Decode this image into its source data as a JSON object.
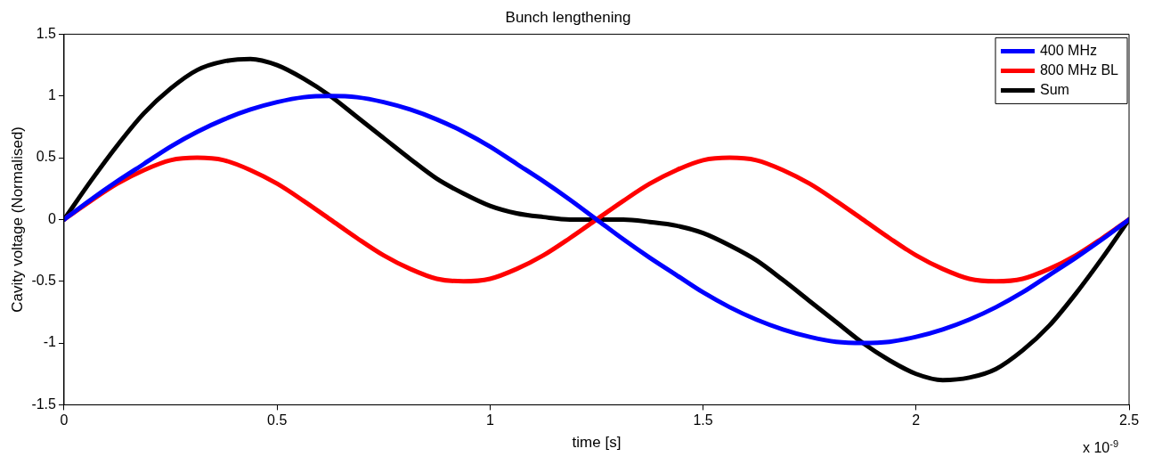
{
  "chart_data": {
    "type": "line",
    "title": "Bunch lengthening",
    "xlabel": "time [s]",
    "ylabel": "Cavity voltage (Normalised)",
    "annotations": [
      "x 10$^{-9}$"
    ],
    "x": [
      0,
      0.0625,
      0.125,
      0.1875,
      0.25,
      0.3125,
      0.375,
      0.4375,
      0.5,
      0.5625,
      0.625,
      0.6875,
      0.75,
      0.8125,
      0.875,
      0.9375,
      1,
      1.0625,
      1.125,
      1.1875,
      1.25,
      1.3125,
      1.375,
      1.4375,
      1.5,
      1.5625,
      1.625,
      1.6875,
      1.75,
      1.8125,
      1.875,
      1.9375,
      2,
      2.0625,
      2.125,
      2.1875,
      2.25,
      2.3125,
      2.375,
      2.4375,
      2.5
    ],
    "series": [
      {
        "name": "400 MHz",
        "color": "#0000ff",
        "values": [
          0,
          0.16,
          0.31,
          0.45,
          0.59,
          0.71,
          0.81,
          0.89,
          0.95,
          0.99,
          1,
          0.99,
          0.95,
          0.89,
          0.81,
          0.71,
          0.59,
          0.45,
          0.31,
          0.16,
          0,
          -0.16,
          -0.31,
          -0.45,
          -0.59,
          -0.71,
          -0.81,
          -0.89,
          -0.95,
          -0.99,
          -1,
          -0.99,
          -0.95,
          -0.89,
          -0.81,
          -0.71,
          -0.59,
          -0.45,
          -0.31,
          -0.16,
          0
        ]
      },
      {
        "name": "800 MHz BL",
        "color": "#ff0000",
        "values": [
          0,
          0.15,
          0.29,
          0.4,
          0.48,
          0.5,
          0.48,
          0.4,
          0.29,
          0.15,
          0,
          -0.15,
          -0.29,
          -0.4,
          -0.48,
          -0.5,
          -0.48,
          -0.4,
          -0.29,
          -0.15,
          0,
          0.15,
          0.29,
          0.4,
          0.48,
          0.5,
          0.48,
          0.4,
          0.29,
          0.15,
          0,
          -0.15,
          -0.29,
          -0.4,
          -0.48,
          -0.5,
          -0.48,
          -0.4,
          -0.29,
          -0.15,
          0
        ]
      },
      {
        "name": "Sum",
        "color": "#000000",
        "values": [
          0,
          0.31,
          0.6,
          0.86,
          1.06,
          1.21,
          1.28,
          1.3,
          1.25,
          1.14,
          1,
          0.83,
          0.66,
          0.49,
          0.33,
          0.21,
          0.11,
          0.05,
          0.02,
          0,
          0,
          0,
          -0.02,
          -0.05,
          -0.11,
          -0.21,
          -0.33,
          -0.49,
          -0.66,
          -0.83,
          -1,
          -1.14,
          -1.25,
          -1.3,
          -1.28,
          -1.21,
          -1.06,
          -0.86,
          -0.6,
          -0.31,
          0
        ]
      }
    ],
    "xlim": [
      0,
      2.5
    ],
    "xticks": [
      0,
      0.5,
      1,
      1.5,
      2,
      2.5
    ],
    "ylim": [
      -1.5,
      1.5
    ],
    "yticks": [
      -1.5,
      -1,
      -0.5,
      0,
      0.5,
      1,
      1.5
    ],
    "grid": false,
    "legend": "top right",
    "marker": "none",
    "line_style": "solid"
  }
}
